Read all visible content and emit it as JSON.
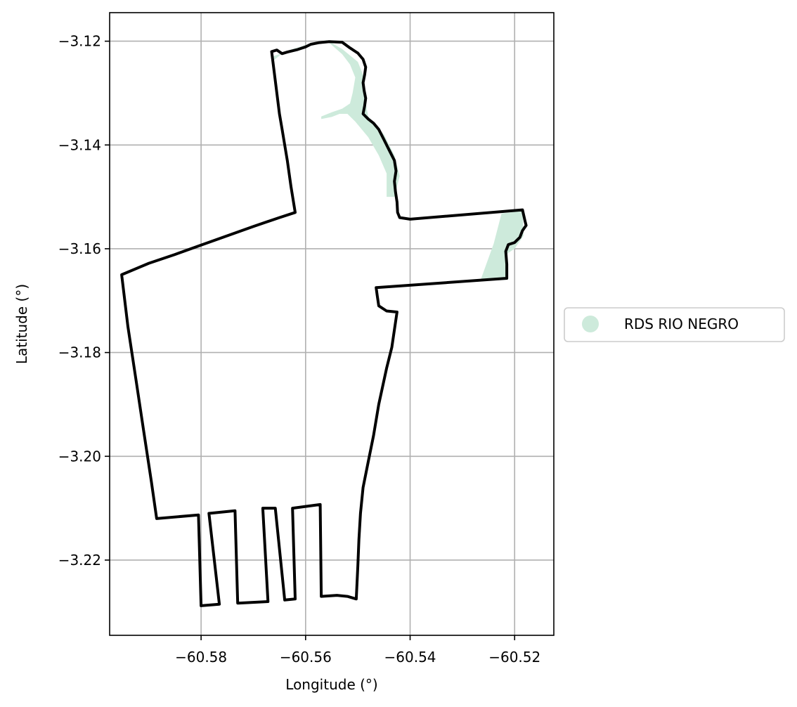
{
  "chart_data": {
    "type": "map",
    "xlabel": "Longitude (°)",
    "ylabel": "Latitude (°)",
    "xlim": [
      -60.5975,
      -60.5125
    ],
    "ylim": [
      -3.2345,
      -3.1145
    ],
    "grid": true,
    "x_ticks": [
      {
        "value": -60.58,
        "label": "−60.58"
      },
      {
        "value": -60.56,
        "label": "−60.56"
      },
      {
        "value": -60.54,
        "label": "−60.54"
      },
      {
        "value": -60.52,
        "label": "−60.52"
      }
    ],
    "y_ticks": [
      {
        "value": -3.12,
        "label": "−3.12"
      },
      {
        "value": -3.14,
        "label": "−3.14"
      },
      {
        "value": -3.16,
        "label": "−3.16"
      },
      {
        "value": -3.18,
        "label": "−3.18"
      },
      {
        "value": -3.2,
        "label": "−3.20"
      },
      {
        "value": -3.22,
        "label": "−3.22"
      }
    ],
    "legend": {
      "placement": "center-right-outside",
      "entries": [
        {
          "label": "RDS RIO NEGRO",
          "color": "#cdeadb"
        }
      ]
    },
    "protected_area": {
      "name": "RDS RIO NEGRO",
      "color": "#cdeadb",
      "polygons": [
        [
          [
            -60.5665,
            -3.124
          ],
          [
            -60.564,
            -3.122
          ],
          [
            -60.56,
            -3.1207
          ],
          [
            -60.556,
            -3.1198
          ],
          [
            -60.553,
            -3.1215
          ],
          [
            -60.55,
            -3.124
          ],
          [
            -60.549,
            -3.1265
          ],
          [
            -60.549,
            -3.129
          ],
          [
            -60.5485,
            -3.132
          ],
          [
            -60.548,
            -3.1345
          ],
          [
            -60.545,
            -3.138
          ],
          [
            -60.543,
            -3.142
          ],
          [
            -60.542,
            -3.146
          ],
          [
            -60.543,
            -3.15
          ],
          [
            -60.5445,
            -3.15
          ],
          [
            -60.5445,
            -3.1455
          ],
          [
            -60.546,
            -3.142
          ],
          [
            -60.548,
            -3.1385
          ],
          [
            -60.5505,
            -3.1355
          ],
          [
            -60.552,
            -3.134
          ],
          [
            -60.5535,
            -3.134
          ],
          [
            -60.555,
            -3.1346
          ],
          [
            -60.557,
            -3.135
          ],
          [
            -60.557,
            -3.1345
          ],
          [
            -60.555,
            -3.1337
          ],
          [
            -60.553,
            -3.133
          ],
          [
            -60.5515,
            -3.132
          ],
          [
            -60.551,
            -3.13
          ],
          [
            -60.5505,
            -3.127
          ],
          [
            -60.5515,
            -3.1245
          ],
          [
            -60.553,
            -3.1225
          ],
          [
            -60.5555,
            -3.1203
          ],
          [
            -60.559,
            -3.1204
          ],
          [
            -60.563,
            -3.1218
          ],
          [
            -60.5665,
            -3.123
          ]
        ],
        [
          [
            -60.5265,
            -3.166
          ],
          [
            -60.524,
            -3.159
          ],
          [
            -60.5225,
            -3.1532
          ],
          [
            -60.5185,
            -3.1527
          ],
          [
            -60.5183,
            -3.1575
          ],
          [
            -60.52,
            -3.16
          ],
          [
            -60.5215,
            -3.161
          ],
          [
            -60.5213,
            -3.166
          ]
        ]
      ]
    },
    "boundary": {
      "color": "#000000",
      "points": [
        [
          -60.5665,
          -3.122
        ],
        [
          -60.5655,
          -3.1217
        ],
        [
          -60.5645,
          -3.1224
        ],
        [
          -60.5635,
          -3.1221
        ],
        [
          -60.5615,
          -3.1216
        ],
        [
          -60.56,
          -3.1211
        ],
        [
          -60.559,
          -3.1206
        ],
        [
          -60.5575,
          -3.1203
        ],
        [
          -60.5555,
          -3.1201
        ],
        [
          -60.553,
          -3.1202
        ],
        [
          -60.5515,
          -3.1213
        ],
        [
          -60.55,
          -3.1223
        ],
        [
          -60.549,
          -3.1235
        ],
        [
          -60.5485,
          -3.125
        ],
        [
          -60.5487,
          -3.1265
        ],
        [
          -60.549,
          -3.128
        ],
        [
          -60.5488,
          -3.1295
        ],
        [
          -60.5485,
          -3.131
        ],
        [
          -60.5487,
          -3.1325
        ],
        [
          -60.549,
          -3.134
        ],
        [
          -60.548,
          -3.135
        ],
        [
          -60.547,
          -3.1358
        ],
        [
          -60.546,
          -3.137
        ],
        [
          -60.545,
          -3.139
        ],
        [
          -60.544,
          -3.141
        ],
        [
          -60.543,
          -3.143
        ],
        [
          -60.5427,
          -3.145
        ],
        [
          -60.543,
          -3.147
        ],
        [
          -60.5428,
          -3.149
        ],
        [
          -60.5425,
          -3.151
        ],
        [
          -60.5424,
          -3.153
        ],
        [
          -60.542,
          -3.154
        ],
        [
          -60.54,
          -3.1543
        ],
        [
          -60.5185,
          -3.1525
        ],
        [
          -60.518,
          -3.1547
        ],
        [
          -60.5178,
          -3.1555
        ],
        [
          -60.5185,
          -3.1565
        ],
        [
          -60.519,
          -3.1578
        ],
        [
          -60.52,
          -3.1588
        ],
        [
          -60.5212,
          -3.1592
        ],
        [
          -60.5217,
          -3.1605
        ],
        [
          -60.5215,
          -3.163
        ],
        [
          -60.5215,
          -3.1657
        ],
        [
          -60.5465,
          -3.1675
        ],
        [
          -60.5463,
          -3.169
        ],
        [
          -60.546,
          -3.171
        ],
        [
          -60.5445,
          -3.172
        ],
        [
          -60.5425,
          -3.1722
        ],
        [
          -60.5435,
          -3.179
        ],
        [
          -60.5445,
          -3.183
        ],
        [
          -60.546,
          -3.19
        ],
        [
          -60.547,
          -3.196
        ],
        [
          -60.548,
          -3.201
        ],
        [
          -60.549,
          -3.206
        ],
        [
          -60.5495,
          -3.211
        ],
        [
          -60.5498,
          -3.216
        ],
        [
          -60.55,
          -3.221
        ],
        [
          -60.5503,
          -3.2275
        ],
        [
          -60.552,
          -3.227
        ],
        [
          -60.554,
          -3.2268
        ],
        [
          -60.557,
          -3.227
        ],
        [
          -60.5572,
          -3.2093
        ],
        [
          -60.5625,
          -3.21
        ],
        [
          -60.562,
          -3.2275
        ],
        [
          -60.564,
          -3.2277
        ],
        [
          -60.5658,
          -3.21
        ],
        [
          -60.5682,
          -3.21
        ],
        [
          -60.5672,
          -3.228
        ],
        [
          -60.573,
          -3.2283
        ],
        [
          -60.5735,
          -3.2105
        ],
        [
          -60.5785,
          -3.211
        ],
        [
          -60.5765,
          -3.2285
        ],
        [
          -60.58,
          -3.2288
        ],
        [
          -60.5805,
          -3.2113
        ],
        [
          -60.5885,
          -3.212
        ],
        [
          -60.5895,
          -3.205
        ],
        [
          -60.591,
          -3.195
        ],
        [
          -60.5925,
          -3.185
        ],
        [
          -60.594,
          -3.175
        ],
        [
          -60.5952,
          -3.165
        ],
        [
          -60.59,
          -3.1628
        ],
        [
          -60.585,
          -3.1611
        ],
        [
          -60.58,
          -3.1593
        ],
        [
          -60.575,
          -3.1575
        ],
        [
          -60.57,
          -3.1557
        ],
        [
          -60.565,
          -3.154
        ],
        [
          -60.562,
          -3.153
        ],
        [
          -60.5628,
          -3.148
        ],
        [
          -60.5635,
          -3.143
        ],
        [
          -60.564,
          -3.14
        ],
        [
          -60.5645,
          -3.137
        ],
        [
          -60.565,
          -3.134
        ],
        [
          -60.5655,
          -3.13
        ],
        [
          -60.566,
          -3.126
        ],
        [
          -60.5665,
          -3.122
        ]
      ]
    }
  }
}
